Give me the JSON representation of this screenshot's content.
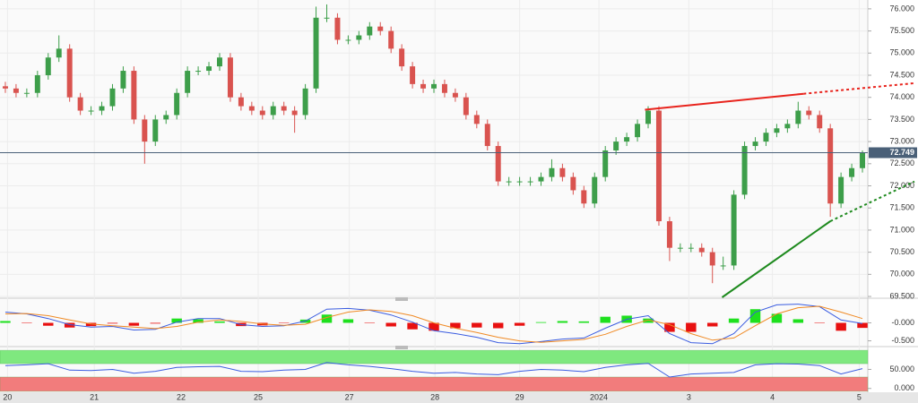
{
  "chart_data": [
    {
      "type": "candlestick",
      "xlim": [
        0,
        81
      ],
      "xticks": [
        {
          "value": 0.7,
          "label": "20"
        },
        {
          "value": 8.8,
          "label": "21"
        },
        {
          "value": 16.9,
          "label": "22"
        },
        {
          "value": 24.1,
          "label": "25"
        },
        {
          "value": 32.6,
          "label": "27"
        },
        {
          "value": 40.6,
          "label": "28"
        },
        {
          "value": 48.5,
          "label": "29"
        },
        {
          "value": 55.9,
          "label": "2024"
        },
        {
          "value": 64.3,
          "label": "3"
        },
        {
          "value": 72.1,
          "label": "4"
        },
        {
          "value": 80.2,
          "label": "5"
        }
      ],
      "ylim": [
        69.46,
        76.2
      ],
      "yticks": [
        {
          "value": 69.5,
          "label": "69.500"
        },
        {
          "value": 70,
          "label": "70.000"
        },
        {
          "value": 70.5,
          "label": "70.500"
        },
        {
          "value": 71,
          "label": "71.000"
        },
        {
          "value": 71.5,
          "label": "71.500"
        },
        {
          "value": 72,
          "label": "72.000"
        },
        {
          "value": 72.5,
          "label": "72.500"
        },
        {
          "value": 73,
          "label": "73.000"
        },
        {
          "value": 73.5,
          "label": "73.500"
        },
        {
          "value": 74,
          "label": "74.000"
        },
        {
          "value": 74.5,
          "label": "74.500"
        },
        {
          "value": 75,
          "label": "75.000"
        },
        {
          "value": 75.5,
          "label": "75.500"
        },
        {
          "value": 76,
          "label": "76.000"
        }
      ],
      "grid": true,
      "up_color": "#3d9e4a",
      "down_color": "#d9534f",
      "open": [
        74.25,
        74.2,
        74.1,
        74.1,
        74.5,
        74.9,
        75.1,
        74.0,
        73.7,
        73.7,
        73.8,
        74.2,
        74.6,
        73.5,
        73.0,
        73.5,
        73.6,
        74.1,
        74.6,
        74.6,
        74.7,
        74.9,
        74.0,
        73.8,
        73.7,
        73.6,
        73.8,
        73.7,
        73.6,
        74.2,
        75.8,
        75.8,
        75.3,
        75.3,
        75.4,
        75.6,
        75.5,
        75.1,
        74.7,
        74.3,
        74.2,
        74.3,
        74.1,
        74.0,
        73.6,
        73.4,
        72.9,
        72.1,
        72.1,
        72.1,
        72.1,
        72.2,
        72.4,
        72.2,
        71.9,
        71.6,
        72.2,
        72.8,
        73.0,
        73.1,
        73.4,
        73.7,
        71.2,
        70.6,
        70.6,
        70.6,
        70.5,
        70.2,
        70.2,
        71.8,
        72.9,
        73.0,
        73.2,
        73.3,
        73.4,
        73.7,
        73.6,
        73.3,
        71.6,
        72.2,
        72.4
      ],
      "high": [
        74.35,
        74.3,
        74.2,
        74.6,
        75.0,
        75.4,
        75.2,
        74.1,
        73.8,
        73.9,
        74.3,
        74.7,
        74.7,
        73.6,
        73.6,
        73.7,
        74.2,
        74.7,
        74.7,
        74.8,
        75.0,
        75.0,
        74.1,
        73.9,
        73.8,
        73.9,
        73.9,
        73.8,
        74.3,
        76.05,
        76.1,
        75.9,
        75.4,
        75.5,
        75.7,
        75.7,
        75.6,
        75.2,
        74.8,
        74.4,
        74.4,
        74.4,
        74.2,
        74.1,
        73.7,
        73.5,
        73.0,
        72.2,
        72.2,
        72.2,
        72.3,
        72.6,
        72.5,
        72.3,
        72.0,
        72.3,
        72.9,
        73.1,
        73.2,
        73.5,
        73.8,
        73.8,
        71.3,
        70.7,
        70.7,
        70.7,
        70.6,
        70.4,
        71.9,
        73.0,
        73.1,
        73.3,
        73.4,
        73.5,
        73.9,
        73.8,
        73.7,
        73.4,
        72.3,
        72.5,
        72.8
      ],
      "low": [
        74.1,
        74.0,
        74.0,
        74.0,
        74.4,
        74.8,
        73.9,
        73.6,
        73.6,
        73.6,
        73.7,
        74.1,
        73.4,
        72.5,
        72.9,
        73.4,
        73.5,
        74.0,
        74.5,
        74.5,
        74.6,
        73.9,
        73.7,
        73.6,
        73.5,
        73.5,
        73.6,
        73.2,
        73.5,
        74.1,
        75.7,
        75.2,
        75.2,
        75.2,
        75.3,
        75.4,
        75.0,
        74.6,
        74.2,
        74.1,
        74.1,
        74.0,
        73.9,
        73.5,
        73.3,
        72.8,
        72.0,
        72.0,
        72.0,
        72.0,
        72.0,
        72.1,
        72.1,
        71.8,
        71.5,
        71.5,
        72.1,
        72.7,
        72.9,
        73.0,
        73.3,
        71.1,
        70.3,
        70.5,
        70.5,
        70.4,
        69.8,
        70.1,
        70.1,
        71.7,
        72.8,
        72.9,
        73.1,
        73.2,
        73.3,
        73.5,
        73.2,
        71.3,
        71.5,
        72.1,
        72.3
      ],
      "close": [
        74.2,
        74.1,
        74.1,
        74.5,
        74.9,
        75.1,
        74.0,
        73.7,
        73.7,
        73.8,
        74.2,
        74.6,
        73.5,
        73.0,
        73.5,
        73.6,
        74.1,
        74.6,
        74.6,
        74.7,
        74.9,
        74.0,
        73.8,
        73.7,
        73.6,
        73.8,
        73.7,
        73.6,
        74.2,
        75.8,
        75.8,
        75.3,
        75.3,
        75.4,
        75.6,
        75.5,
        75.1,
        74.7,
        74.3,
        74.2,
        74.3,
        74.1,
        74.0,
        73.6,
        73.4,
        72.9,
        72.1,
        72.1,
        72.1,
        72.1,
        72.2,
        72.4,
        72.2,
        71.9,
        71.6,
        72.2,
        72.8,
        73.0,
        73.1,
        73.4,
        73.7,
        71.2,
        70.6,
        70.6,
        70.6,
        70.5,
        70.2,
        70.2,
        71.8,
        72.9,
        73.0,
        73.2,
        73.3,
        73.4,
        73.7,
        73.6,
        73.3,
        71.6,
        72.2,
        72.4,
        72.749
      ],
      "last_price": {
        "value": 72.749,
        "label": "72.749"
      },
      "last_price_color": "#4a6078",
      "trendlines": [
        {
          "color": "#e8231c",
          "x": [
            60.2,
            75.0,
            85.4
          ],
          "y": [
            73.72,
            74.08,
            74.32
          ]
        },
        {
          "color": "#1e8a1e",
          "x": [
            67.4,
            77.5,
            85.4
          ],
          "y": [
            69.48,
            71.2,
            72.1
          ]
        }
      ]
    },
    {
      "type": "macd",
      "ylim": [
        -0.66,
        0.66
      ],
      "yticks": [
        {
          "value": 0,
          "label": "-0.000"
        },
        {
          "value": -0.5,
          "label": "-0.500"
        }
      ],
      "x": [
        0.5,
        2.5,
        4.5,
        6.5,
        8.5,
        10.5,
        12.5,
        14.5,
        16.5,
        18.5,
        20.5,
        22.5,
        24.5,
        26.5,
        28.5,
        30.5,
        32.5,
        34.5,
        36.5,
        38.5,
        40.5,
        42.5,
        44.5,
        46.5,
        48.5,
        50.5,
        52.5,
        54.5,
        56.5,
        58.5,
        60.5,
        62.5,
        64.5,
        66.5,
        68.5,
        70.5,
        72.5,
        74.5,
        76.5,
        78.5,
        80.5
      ],
      "histogram": {
        "pos_color": "#1ee01e",
        "neg_color": "#e81010",
        "values": [
          0.05,
          -0.01,
          -0.08,
          -0.13,
          -0.09,
          -0.02,
          -0.08,
          -0.02,
          0.12,
          0.1,
          0.04,
          -0.09,
          -0.07,
          -0.01,
          0.09,
          0.23,
          0.1,
          -0.01,
          -0.1,
          -0.18,
          -0.22,
          -0.15,
          -0.13,
          -0.15,
          -0.08,
          0.02,
          0.05,
          0.04,
          0.17,
          0.2,
          0.12,
          -0.25,
          -0.25,
          -0.1,
          0.12,
          0.38,
          0.25,
          0.1,
          -0.01,
          -0.22,
          -0.14
        ]
      },
      "series": [
        {
          "color": "#3a5ce0",
          "values": [
            0.3,
            0.25,
            0.12,
            -0.05,
            -0.12,
            -0.1,
            -0.2,
            -0.18,
            0.02,
            0.12,
            0.12,
            -0.05,
            -0.1,
            -0.08,
            0.05,
            0.38,
            0.4,
            0.35,
            0.22,
            0.02,
            -0.22,
            -0.3,
            -0.4,
            -0.55,
            -0.58,
            -0.52,
            -0.45,
            -0.42,
            -0.15,
            0.1,
            0.2,
            -0.3,
            -0.55,
            -0.58,
            -0.3,
            0.3,
            0.5,
            0.52,
            0.45,
            0.08,
            -0.02
          ]
        },
        {
          "color": "#f08a24",
          "values": [
            0.25,
            0.26,
            0.2,
            0.08,
            -0.03,
            -0.08,
            -0.12,
            -0.16,
            -0.1,
            0.02,
            0.08,
            0.04,
            -0.03,
            -0.07,
            -0.04,
            0.15,
            0.3,
            0.36,
            0.32,
            0.2,
            0.0,
            -0.15,
            -0.27,
            -0.4,
            -0.5,
            -0.54,
            -0.5,
            -0.46,
            -0.32,
            -0.1,
            0.08,
            -0.05,
            -0.3,
            -0.48,
            -0.42,
            -0.08,
            0.25,
            0.42,
            0.46,
            0.3,
            0.12
          ]
        }
      ]
    },
    {
      "type": "line",
      "ylim": [
        -10,
        107.5
      ],
      "yticks": [
        {
          "value": 50,
          "label": "50.000"
        },
        {
          "value": 0,
          "label": "0.000"
        }
      ],
      "bands": [
        {
          "from": 65,
          "to": 100,
          "color": "#7fe87f"
        },
        {
          "from": -7.5,
          "to": 30,
          "color": "#f27c7c"
        }
      ],
      "x": [
        0.5,
        2.5,
        4.5,
        6.5,
        8.5,
        10.5,
        12.5,
        14.5,
        16.5,
        18.5,
        20.5,
        22.5,
        24.5,
        26.5,
        28.5,
        30.5,
        32.5,
        34.5,
        36.5,
        38.5,
        40.5,
        42.5,
        44.5,
        46.5,
        48.5,
        50.5,
        52.5,
        54.5,
        56.5,
        58.5,
        60.5,
        62.5,
        64.5,
        66.5,
        68.5,
        70.5,
        72.5,
        74.5,
        76.5,
        78.5,
        80.5
      ],
      "series": [
        {
          "color": "#3a5ce0",
          "values": [
            60,
            62,
            65,
            48,
            47,
            50,
            40,
            45,
            55,
            57,
            58,
            45,
            44,
            48,
            50,
            68,
            62,
            58,
            52,
            45,
            40,
            42,
            38,
            36,
            45,
            50,
            48,
            44,
            55,
            62,
            66,
            30,
            38,
            40,
            42,
            62,
            65,
            64,
            60,
            38,
            52
          ]
        }
      ]
    }
  ]
}
